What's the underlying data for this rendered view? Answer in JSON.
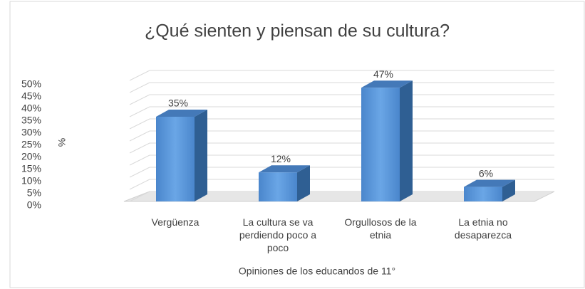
{
  "chart_data": {
    "type": "bar3d",
    "title": "¿Qué sienten y piensan de su cultura?",
    "x_label": "Opiniones de los educandos de 11°",
    "y_label": "%",
    "categories": [
      "Vergüenza",
      "La cultura se va perdiendo poco a poco",
      "Orgullosos de la etnia",
      "La etnia no desaparezca"
    ],
    "values": [
      35,
      12,
      47,
      6
    ],
    "value_labels": [
      "35%",
      "12%",
      "47%",
      "6%"
    ],
    "color": "#4f8fd6",
    "ylim": [
      0,
      50
    ],
    "yticks": [
      {
        "value": 0,
        "label": "0%"
      },
      {
        "value": 5,
        "label": "5%"
      },
      {
        "value": 10,
        "label": "10%"
      },
      {
        "value": 15,
        "label": "15%"
      },
      {
        "value": 20,
        "label": "20%"
      },
      {
        "value": 25,
        "label": "25%"
      },
      {
        "value": 30,
        "label": "30%"
      },
      {
        "value": 35,
        "label": "35%"
      },
      {
        "value": 40,
        "label": "40%"
      },
      {
        "value": 45,
        "label": "45%"
      },
      {
        "value": 50,
        "label": "50%"
      }
    ],
    "grid": true
  }
}
